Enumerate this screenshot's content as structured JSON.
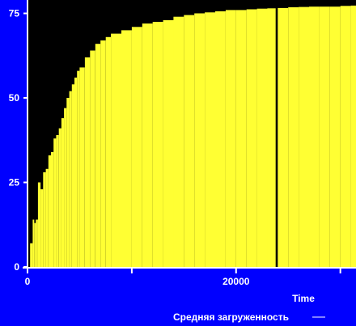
{
  "colors": {
    "background": "#0000ff",
    "plot_area": "#000000",
    "series": "#ffff33",
    "axis": "#ffffff",
    "text": "#ffffff"
  },
  "chart_data": {
    "type": "area",
    "title": "",
    "xlabel": "Time",
    "ylabel": "",
    "xlim": [
      0,
      31500
    ],
    "ylim": [
      0,
      78
    ],
    "grid": false,
    "legend": "bottom-right",
    "x_ticks": [
      "0",
      "20000"
    ],
    "x_minor_ticks": [
      10000,
      30000
    ],
    "y_ticks": [
      "0",
      "25",
      "50",
      "75"
    ],
    "series": [
      {
        "name": "Средняя загруженность",
        "x": [
          250,
          350,
          500,
          650,
          800,
          1000,
          1250,
          1500,
          1750,
          2000,
          2250,
          2500,
          2750,
          3000,
          3250,
          3500,
          3750,
          4000,
          4250,
          4500,
          4750,
          5000,
          5500,
          6000,
          6500,
          7000,
          7500,
          8000,
          9000,
          10000,
          11000,
          12000,
          13000,
          14000,
          15000,
          16000,
          17000,
          18000,
          19000,
          20000,
          21000,
          22000,
          23000,
          23800,
          24000,
          25000,
          26000,
          27000,
          28000,
          29000,
          30000,
          31000
        ],
        "y": [
          7,
          7,
          14,
          13,
          14,
          25,
          23,
          28,
          29,
          33,
          34,
          38,
          39,
          41,
          44,
          47,
          50,
          52,
          54,
          56,
          58,
          59,
          62,
          64,
          66,
          67,
          68,
          69,
          70,
          71,
          72,
          72.5,
          73,
          74,
          74.5,
          75,
          75.3,
          75.6,
          76,
          76,
          76.2,
          76.4,
          76.5,
          0,
          76.6,
          76.8,
          76.9,
          77,
          77,
          77,
          77.2,
          77.3
        ]
      }
    ]
  }
}
